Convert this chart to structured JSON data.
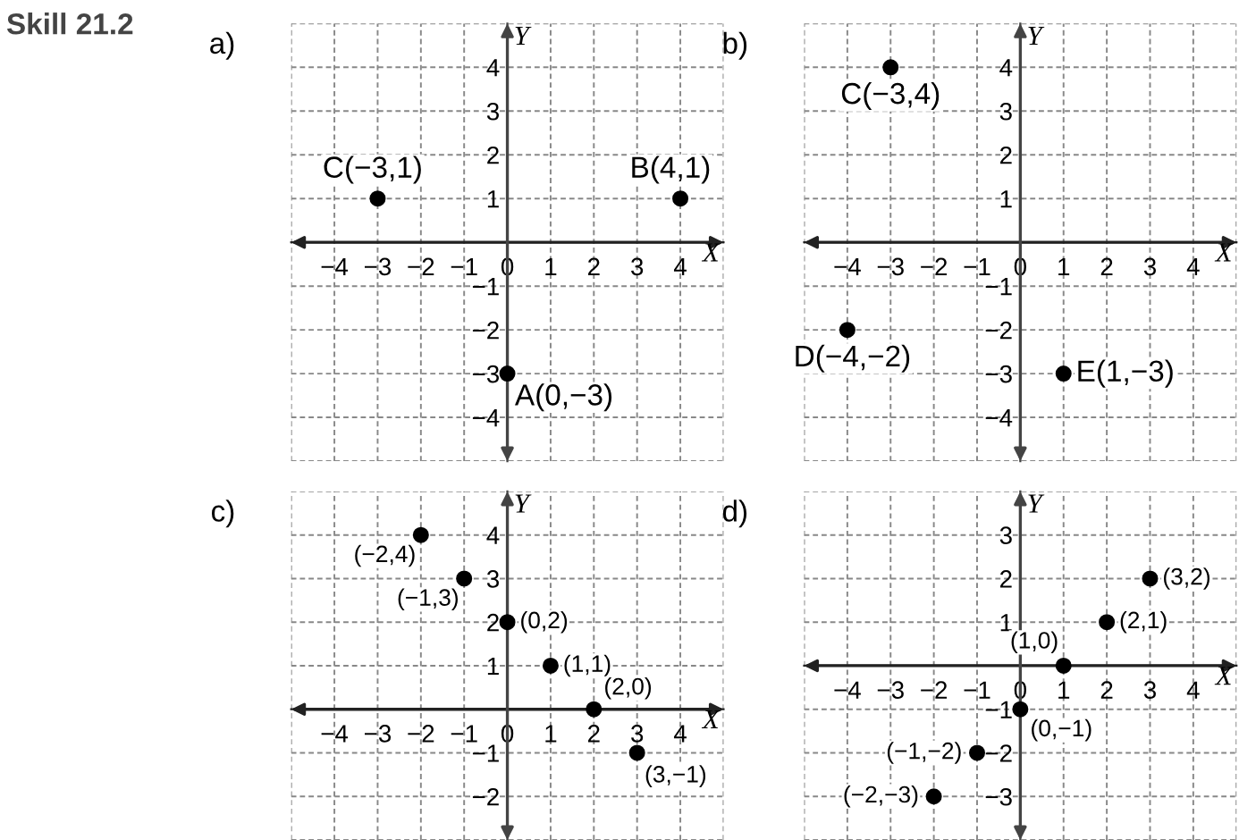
{
  "chart_data": [
    {
      "type": "scatter",
      "title": "a)",
      "xlabel": "X",
      "ylabel": "Y",
      "annotations": [
        "Skill 21.2",
        {
          "text": "A(0,−3)",
          "x": 0,
          "y": -3
        },
        {
          "text": "C(−3,1)",
          "x": -3,
          "y": 1
        },
        {
          "text": "B(4,1)",
          "x": 4,
          "y": 1
        }
      ],
      "series": [
        {
          "color": "#000000",
          "x": [
            0,
            -3,
            4
          ],
          "values": [
            -3,
            1,
            1
          ]
        }
      ],
      "xlim": [
        -5,
        5
      ],
      "ylim": [
        -5,
        5
      ],
      "marker": "circle",
      "grid": true,
      "xticks": [
        {
          "value": -5,
          "label": null
        },
        {
          "value": -4,
          "label": "−4"
        },
        {
          "value": -3,
          "label": "−3"
        },
        {
          "value": -2,
          "label": "−2"
        },
        {
          "value": -1,
          "label": "−1"
        },
        0,
        1,
        2,
        3,
        4,
        {
          "value": 5,
          "label": null
        }
      ],
      "yticks": [
        {
          "value": -5,
          "label": null
        },
        {
          "value": -4,
          "label": "−4"
        },
        {
          "value": -3,
          "label": "−3"
        },
        {
          "value": -2,
          "label": "−2"
        },
        {
          "value": -1,
          "label": "−1"
        },
        1,
        2,
        3,
        4,
        {
          "value": 5,
          "label": null
        }
      ]
    },
    {
      "type": "scatter",
      "title": "b)",
      "xlabel": "X",
      "ylabel": "Y",
      "annotations": [
        {
          "text": "C(−3,4)",
          "x": -3,
          "y": 4
        },
        {
          "text": "D(−4,−2)",
          "x": -4,
          "y": -2
        },
        {
          "text": "E(1,−3)",
          "x": 1,
          "y": -3
        }
      ],
      "series": [
        {
          "color": "#000000",
          "x": [
            -3,
            -4,
            1
          ],
          "values": [
            4,
            -2,
            -3
          ]
        }
      ],
      "xlim": [
        -5,
        5
      ],
      "ylim": [
        -5,
        5
      ],
      "marker": "circle",
      "grid": true,
      "xticks": [
        {
          "value": -5,
          "label": null
        },
        {
          "value": -4,
          "label": "−4"
        },
        {
          "value": -3,
          "label": "−3"
        },
        {
          "value": -2,
          "label": "−2"
        },
        {
          "value": -1,
          "label": "−1"
        },
        0,
        1,
        2,
        3,
        4,
        {
          "value": 5,
          "label": null
        }
      ],
      "yticks": [
        {
          "value": -5,
          "label": null
        },
        {
          "value": -4,
          "label": "−4"
        },
        {
          "value": -3,
          "label": "−3"
        },
        {
          "value": -2,
          "label": "−2"
        },
        {
          "value": -1,
          "label": "−1"
        },
        1,
        2,
        3,
        4,
        {
          "value": 5,
          "label": null
        }
      ]
    },
    {
      "type": "scatter",
      "title": "c)",
      "xlabel": "X",
      "ylabel": "Y",
      "annotations": [
        {
          "text": "(−2,4)",
          "x": -2,
          "y": 4
        },
        {
          "text": "(−1,3)",
          "x": -1,
          "y": 3
        },
        {
          "text": "(0,2)",
          "x": 0,
          "y": 2
        },
        {
          "text": "(1,1)",
          "x": 1,
          "y": 1
        },
        {
          "text": "(2,0)",
          "x": 2,
          "y": 0
        },
        {
          "text": "(3,−1)",
          "x": 3,
          "y": -1
        }
      ],
      "series": [
        {
          "color": "#000000",
          "x": [
            -2,
            -1,
            0,
            1,
            2,
            3
          ],
          "values": [
            4,
            3,
            2,
            1,
            0,
            -1
          ]
        }
      ],
      "xlim": [
        -5,
        5
      ],
      "ylim": [
        -3,
        5
      ],
      "marker": "circle",
      "grid": true,
      "xticks": [
        {
          "value": -5,
          "label": null
        },
        {
          "value": -4,
          "label": "−4"
        },
        {
          "value": -3,
          "label": "−3"
        },
        {
          "value": -2,
          "label": "−2"
        },
        {
          "value": -1,
          "label": "−1"
        },
        0,
        1,
        2,
        3,
        4,
        {
          "value": 5,
          "label": null
        }
      ],
      "yticks": [
        {
          "value": -3,
          "label": null
        },
        {
          "value": -2,
          "label": "−2"
        },
        {
          "value": -1,
          "label": "−1"
        },
        1,
        2,
        3,
        4,
        {
          "value": 5,
          "label": null
        }
      ]
    },
    {
      "type": "scatter",
      "title": "d)",
      "xlabel": "X",
      "ylabel": "Y",
      "annotations": [
        {
          "text": "(3,2)",
          "x": 3,
          "y": 2
        },
        {
          "text": "(2,1)",
          "x": 2,
          "y": 1
        },
        {
          "text": "(1,0)",
          "x": 1,
          "y": 0
        },
        {
          "text": "(0,−1)",
          "x": 0,
          "y": -1
        },
        {
          "text": "(−1,−2)",
          "x": -1,
          "y": -2
        },
        {
          "text": "(−2,−3)",
          "x": -2,
          "y": -3
        }
      ],
      "series": [
        {
          "color": "#000000",
          "x": [
            3,
            2,
            1,
            0,
            -1,
            -2
          ],
          "values": [
            2,
            1,
            0,
            -1,
            -2,
            -3
          ]
        }
      ],
      "xlim": [
        -5,
        5
      ],
      "ylim": [
        -4,
        4
      ],
      "marker": "circle",
      "grid": true,
      "xticks": [
        {
          "value": -5,
          "label": null
        },
        {
          "value": -4,
          "label": "−4"
        },
        {
          "value": -3,
          "label": "−3"
        },
        {
          "value": -2,
          "label": "−2"
        },
        {
          "value": -1,
          "label": "−1"
        },
        0,
        1,
        2,
        3,
        4,
        {
          "value": 5,
          "label": null
        }
      ],
      "yticks": [
        {
          "value": -4,
          "label": null
        },
        {
          "value": -3,
          "label": "−3"
        },
        {
          "value": -2,
          "label": "−2"
        },
        {
          "value": -1,
          "label": "−1"
        },
        1,
        2,
        3,
        {
          "value": 4,
          "label": null
        }
      ]
    }
  ]
}
